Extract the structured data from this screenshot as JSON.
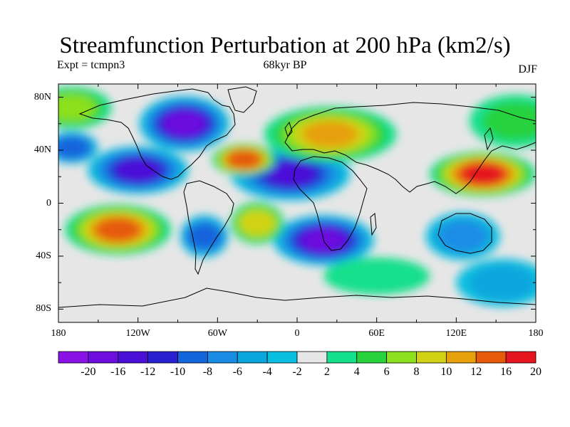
{
  "title": "Streamfunction Perturbation at 200 hPa (km2/s)",
  "subtitle_left": "Expt = tcmpn3",
  "subtitle_center": "68kyr BP",
  "subtitle_right": "DJF",
  "x_ticks": [
    "180",
    "120W",
    "60W",
    "0",
    "60E",
    "120E",
    "180"
  ],
  "y_ticks": [
    "80N",
    "40N",
    "0",
    "40S",
    "80S"
  ],
  "colorbar": {
    "levels": [
      "-20",
      "-16",
      "-12",
      "-10",
      "-8",
      "-6",
      "-4",
      "-2",
      "2",
      "4",
      "6",
      "8",
      "10",
      "12",
      "16",
      "20"
    ],
    "colors": [
      "#8a12e6",
      "#6d0de0",
      "#4b10d8",
      "#2820d0",
      "#1464dc",
      "#1a8ce6",
      "#0ca6de",
      "#0ac0e0",
      "#e6e6e6",
      "#14e08c",
      "#28d23c",
      "#8ce01e",
      "#d2d214",
      "#e6a00a",
      "#e65a0a",
      "#e6141e"
    ]
  },
  "regions": [
    {
      "lon": -120,
      "lat": 25,
      "rx": 28,
      "ry": 12,
      "level": 2
    },
    {
      "lon": -5,
      "lat": 22,
      "rx": 35,
      "ry": 14,
      "level": 2
    },
    {
      "lon": -85,
      "lat": 60,
      "rx": 24,
      "ry": 15,
      "level": 1
    },
    {
      "lon": 20,
      "lat": -28,
      "rx": 28,
      "ry": 13,
      "level": 1
    },
    {
      "lon": -70,
      "lat": -25,
      "rx": 8,
      "ry": 10,
      "level": 4
    },
    {
      "lon": 125,
      "lat": -25,
      "rx": 18,
      "ry": 12,
      "level": 5
    },
    {
      "lon": -170,
      "lat": 42,
      "rx": 10,
      "ry": 6,
      "level": 4
    },
    {
      "lon": -135,
      "lat": -20,
      "rx": 30,
      "ry": 13,
      "level": 14
    },
    {
      "lon": -30,
      "lat": -15,
      "rx": 10,
      "ry": 10,
      "level": 12
    },
    {
      "lon": -40,
      "lat": 33,
      "rx": 14,
      "ry": 6,
      "level": 14
    },
    {
      "lon": 25,
      "lat": 52,
      "rx": 40,
      "ry": 15,
      "level": 13
    },
    {
      "lon": 140,
      "lat": 22,
      "rx": 30,
      "ry": 11,
      "level": 15
    },
    {
      "lon": -170,
      "lat": 72,
      "rx": 20,
      "ry": 10,
      "level": 11
    },
    {
      "lon": 165,
      "lat": 62,
      "rx": 25,
      "ry": 14,
      "level": 10
    },
    {
      "lon": 60,
      "lat": -55,
      "rx": 30,
      "ry": 8,
      "level": 9
    },
    {
      "lon": 155,
      "lat": -60,
      "rx": 25,
      "ry": 12,
      "level": 6
    }
  ]
}
